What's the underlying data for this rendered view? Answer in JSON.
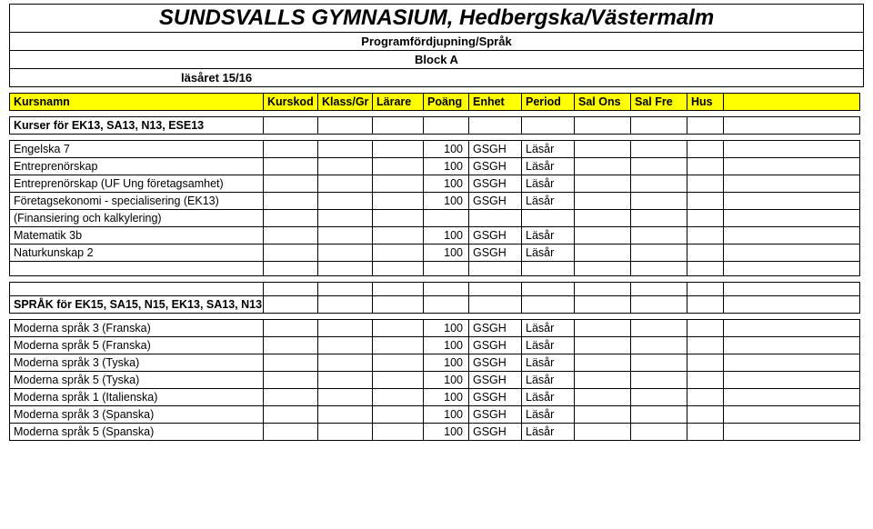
{
  "title": "SUNDSVALLS GYMNASIUM, Hedbergska/Västermalm",
  "subtitle": "Programfördjupning/Språk",
  "block": "Block A",
  "year_label": "läsåret 15/16",
  "headers": {
    "kursnamn": "Kursnamn",
    "kurskod": "Kurskod",
    "klassgr": "Klass/Gr",
    "larare": "Lärare",
    "poang": "Poäng",
    "enhet": "Enhet",
    "period": "Period",
    "salons": "Sal Ons",
    "salfre": "Sal Fre",
    "hus": "Hus"
  },
  "section1_title": "Kurser för EK13, SA13, N13, ESE13",
  "section1_rows": [
    {
      "name": "Engelska 7",
      "poang": "100",
      "enhet": "GSGH",
      "period": "Läsår"
    },
    {
      "name": "Entreprenörskap",
      "poang": "100",
      "enhet": "GSGH",
      "period": "Läsår"
    },
    {
      "name": "Entreprenörskap (UF Ung företagsamhet)",
      "poang": "100",
      "enhet": "GSGH",
      "period": "Läsår"
    },
    {
      "name": "Företagsekonomi - specialisering (EK13)",
      "poang": "100",
      "enhet": "GSGH",
      "period": "Läsår"
    },
    {
      "name": "(Finansiering och kalkylering)",
      "poang": "",
      "enhet": "",
      "period": ""
    },
    {
      "name": "Matematik 3b",
      "poang": "100",
      "enhet": "GSGH",
      "period": "Läsår"
    },
    {
      "name": "Naturkunskap 2",
      "poang": "100",
      "enhet": "GSGH",
      "period": "Läsår"
    }
  ],
  "section2_title": "SPRÅK för EK15, SA15, N15, EK13, SA13, N13",
  "section2_rows": [
    {
      "name": "Moderna språk 3 (Franska)",
      "poang": "100",
      "enhet": "GSGH",
      "period": "Läsår"
    },
    {
      "name": "Moderna språk 5 (Franska)",
      "poang": "100",
      "enhet": "GSGH",
      "period": "Läsår"
    },
    {
      "name": "Moderna språk 3 (Tyska)",
      "poang": "100",
      "enhet": "GSGH",
      "period": "Läsår"
    },
    {
      "name": "Moderna språk 5 (Tyska)",
      "poang": "100",
      "enhet": "GSGH",
      "period": "Läsår"
    },
    {
      "name": "Moderna språk 1 (Italienska)",
      "poang": "100",
      "enhet": "GSGH",
      "period": "Läsår"
    },
    {
      "name": "Moderna språk 3 (Spanska)",
      "poang": "100",
      "enhet": "GSGH",
      "period": "Läsår"
    },
    {
      "name": "Moderna språk 5 (Spanska)",
      "poang": "100",
      "enhet": "GSGH",
      "period": "Läsår"
    }
  ],
  "colors": {
    "header_bg": "#ffff00",
    "border": "#000000",
    "bg": "#ffffff",
    "text": "#000000"
  }
}
